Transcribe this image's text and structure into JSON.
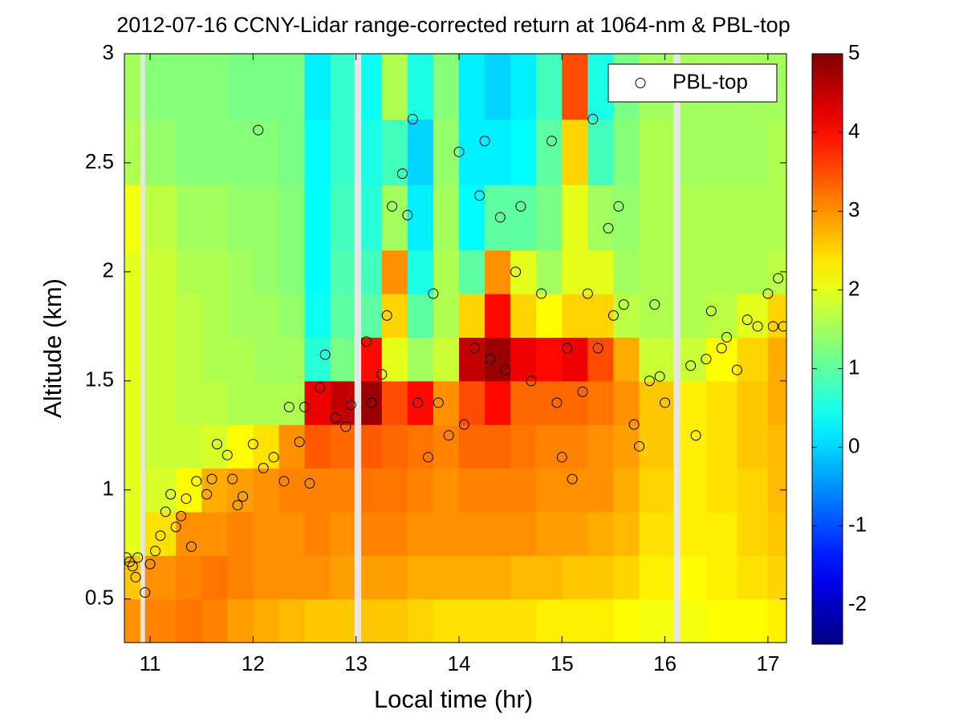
{
  "chart_data": {
    "type": "heatmap",
    "title": "2012-07-16 CCNY-Lidar range-corrected return at 1064-nm & PBL-top",
    "x_label": "Local time (hr)",
    "y_label": "Altitude (km)",
    "xlim": [
      10.75,
      17.18
    ],
    "xticks": [
      11,
      12,
      13,
      14,
      15,
      16,
      17
    ],
    "ylim": [
      0.3,
      3
    ],
    "yticks": [
      0.5,
      1,
      1.5,
      2,
      2.5,
      3
    ],
    "clim": [
      -2.5,
      5
    ],
    "cticks": [
      -2,
      -1,
      0,
      1,
      2,
      3,
      4,
      5
    ],
    "colormap": "jet",
    "legend": "upper right",
    "x_edges": [
      10.75,
      10.9,
      10.95,
      11.25,
      11.5,
      11.75,
      12,
      12.25,
      12.5,
      12.75,
      12.98,
      13.05,
      13.25,
      13.5,
      13.75,
      14,
      14.25,
      14.5,
      14.75,
      15,
      15.25,
      15.5,
      15.75,
      16.08,
      16.15,
      16.4,
      16.7,
      17,
      17.18
    ],
    "y_edges": [
      0.3,
      0.5,
      0.7,
      0.9,
      1.1,
      1.3,
      1.5,
      1.7,
      1.9,
      2.1,
      2.4,
      2.7,
      3.0
    ],
    "z": [
      [
        3.0,
        2.6,
        2.0,
        2.0,
        2.0,
        2.0,
        2.0,
        2.0,
        2.0,
        2.1,
        1.6,
        1.5
      ],
      null,
      [
        3.1,
        3.0,
        2.4,
        1.9,
        1.8,
        1.8,
        1.8,
        1.8,
        1.8,
        1.7,
        1.4,
        1.3
      ],
      [
        3.2,
        3.1,
        3.0,
        2.2,
        1.8,
        1.7,
        1.7,
        1.7,
        1.6,
        1.5,
        1.3,
        1.3
      ],
      [
        3.1,
        3.2,
        3.0,
        2.8,
        1.9,
        1.7,
        1.6,
        1.6,
        1.6,
        1.5,
        1.3,
        1.3
      ],
      [
        2.9,
        3.1,
        3.1,
        2.9,
        2.2,
        1.6,
        1.6,
        1.5,
        1.5,
        1.4,
        1.3,
        1.2
      ],
      [
        2.8,
        3.0,
        3.0,
        3.0,
        2.4,
        1.6,
        1.5,
        1.5,
        1.4,
        1.4,
        1.3,
        1.2
      ],
      [
        2.7,
        3.0,
        3.0,
        3.1,
        3.0,
        1.6,
        1.5,
        1.4,
        1.3,
        1.3,
        1.2,
        1.2
      ],
      [
        2.6,
        3.0,
        3.1,
        3.1,
        3.4,
        4.2,
        0.6,
        0.4,
        0.3,
        0.3,
        0.3,
        0.2
      ],
      [
        2.6,
        2.9,
        3.0,
        3.1,
        3.3,
        4.5,
        1.2,
        1.0,
        0.9,
        0.8,
        0.7,
        0.7
      ],
      null,
      [
        2.6,
        2.9,
        3.1,
        3.2,
        3.4,
        4.8,
        4.0,
        1.0,
        0.8,
        0.6,
        0.5,
        0.4
      ],
      [
        2.6,
        2.9,
        3.1,
        3.2,
        3.3,
        3.5,
        2.0,
        2.5,
        3.0,
        1.5,
        0.8,
        1.6
      ],
      [
        2.5,
        2.8,
        3.0,
        3.1,
        3.2,
        4.0,
        1.5,
        1.0,
        0.5,
        0.2,
        0.0,
        0.5
      ],
      [
        2.4,
        2.8,
        3.0,
        3.0,
        3.1,
        3.0,
        1.8,
        1.6,
        1.6,
        1.5,
        1.4,
        1.3
      ],
      [
        2.4,
        2.8,
        3.0,
        3.1,
        3.3,
        3.5,
        4.5,
        2.5,
        1.0,
        0.3,
        0.2,
        0.2
      ],
      [
        2.4,
        2.8,
        3.0,
        3.1,
        3.3,
        4.0,
        4.8,
        4.0,
        3.0,
        1.0,
        0.2,
        0.0
      ],
      [
        2.4,
        2.7,
        3.0,
        3.1,
        3.2,
        3.3,
        4.2,
        2.5,
        2.0,
        1.0,
        0.3,
        0.2
      ],
      [
        2.3,
        2.7,
        2.9,
        3.0,
        3.1,
        3.3,
        4.0,
        2.2,
        1.5,
        1.2,
        1.0,
        0.8
      ],
      [
        2.3,
        2.6,
        2.9,
        3.0,
        3.1,
        3.3,
        4.2,
        2.5,
        2.0,
        2.0,
        2.5,
        3.5
      ],
      [
        2.3,
        2.6,
        2.8,
        3.0,
        3.0,
        3.2,
        3.5,
        2.5,
        2.0,
        1.5,
        0.8,
        0.5
      ],
      [
        2.2,
        2.5,
        2.7,
        2.8,
        2.9,
        3.0,
        2.8,
        1.7,
        1.5,
        1.4,
        1.3,
        1.2
      ],
      [
        2.1,
        2.3,
        2.4,
        2.5,
        2.6,
        2.6,
        1.8,
        1.6,
        1.6,
        1.6,
        1.6,
        1.5
      ],
      null,
      [
        2.1,
        2.2,
        2.3,
        2.3,
        2.3,
        2.3,
        1.8,
        1.6,
        1.6,
        1.6,
        1.5,
        1.5
      ],
      [
        2.2,
        2.3,
        2.3,
        2.4,
        2.4,
        2.4,
        2.2,
        1.7,
        1.6,
        1.6,
        1.5,
        1.5
      ],
      [
        2.2,
        2.4,
        2.5,
        2.5,
        2.6,
        2.6,
        2.5,
        2.0,
        1.6,
        1.6,
        1.5,
        1.5
      ],
      [
        2.3,
        2.5,
        2.6,
        2.7,
        2.7,
        2.8,
        2.8,
        2.5,
        1.7,
        1.6,
        1.6,
        1.5
      ]
    ],
    "series": [
      {
        "name": "PBL-top",
        "type": "scatter",
        "color": "#000000",
        "x": [
          10.77,
          10.8,
          10.83,
          10.86,
          10.88,
          10.95,
          11.0,
          11.05,
          11.1,
          11.15,
          11.2,
          11.25,
          11.3,
          11.35,
          11.4,
          11.45,
          11.55,
          11.6,
          11.65,
          11.75,
          11.8,
          11.85,
          11.9,
          12.0,
          12.05,
          12.1,
          12.2,
          12.3,
          12.35,
          12.45,
          12.5,
          12.55,
          12.65,
          12.7,
          12.8,
          12.9,
          12.95,
          13.1,
          13.15,
          13.25,
          13.3,
          13.35,
          13.45,
          13.5,
          13.55,
          13.6,
          13.7,
          13.75,
          13.8,
          13.9,
          14.0,
          14.05,
          14.15,
          14.2,
          14.25,
          14.3,
          14.4,
          14.45,
          14.55,
          14.6,
          14.7,
          14.8,
          14.9,
          14.95,
          15.0,
          15.05,
          15.1,
          15.2,
          15.25,
          15.3,
          15.35,
          15.45,
          15.5,
          15.55,
          15.6,
          15.7,
          15.75,
          15.85,
          15.9,
          15.95,
          16.0,
          16.25,
          16.3,
          16.4,
          16.45,
          16.55,
          16.6,
          16.7,
          16.8,
          16.9,
          17.0,
          17.05,
          17.1,
          17.15
        ],
        "y": [
          0.69,
          0.67,
          0.65,
          0.6,
          0.69,
          0.53,
          0.66,
          0.72,
          0.79,
          0.9,
          0.98,
          0.83,
          0.88,
          0.96,
          0.74,
          1.04,
          0.98,
          1.05,
          1.21,
          1.16,
          1.05,
          0.93,
          0.97,
          1.21,
          2.65,
          1.1,
          1.15,
          1.04,
          1.38,
          1.22,
          1.38,
          1.03,
          1.47,
          1.62,
          1.33,
          1.29,
          1.39,
          1.68,
          1.4,
          1.53,
          1.8,
          2.3,
          2.45,
          2.26,
          2.7,
          1.4,
          1.15,
          1.9,
          1.4,
          1.25,
          2.55,
          1.3,
          1.65,
          2.35,
          2.6,
          1.6,
          2.25,
          1.55,
          2.0,
          2.3,
          1.5,
          1.9,
          2.6,
          1.4,
          1.15,
          1.65,
          1.05,
          1.45,
          1.9,
          2.7,
          1.65,
          2.2,
          1.8,
          2.3,
          1.85,
          1.3,
          1.2,
          1.5,
          1.85,
          1.52,
          1.4,
          1.57,
          1.25,
          1.6,
          1.82,
          1.65,
          1.7,
          1.55,
          1.78,
          1.75,
          1.9,
          1.75,
          1.97,
          1.75
        ]
      }
    ]
  }
}
